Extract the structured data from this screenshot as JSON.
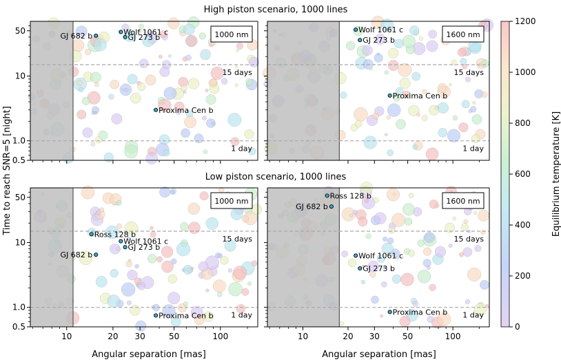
{
  "figure": {
    "ylabel": "Time to reach SNR=5 [night]",
    "xlabel": "Angular separation [mas]",
    "colorbar": {
      "label": "Equilibrium temperature [K]",
      "range": [
        0,
        1200
      ],
      "ticks": [
        0,
        200,
        400,
        600,
        800,
        1000,
        1200
      ],
      "colors": [
        "#440154",
        "#30678d",
        "#35b778",
        "#fde724",
        "#ff7f0e",
        "#d62728"
      ]
    },
    "row_titles": [
      "High piston scenario, 1000 lines",
      "Low piston scenario, 1000 lines"
    ]
  },
  "chart_data": [
    {
      "type": "scatter",
      "title": "High piston scenario, 1000 lines",
      "wavelength_label": "1000 nm",
      "xlabel": "",
      "ylabel": "Time to reach SNR=5 [night]",
      "x_scale": "log",
      "y_scale": "log",
      "xlim": [
        5.8,
        175
      ],
      "ylim": [
        0.5,
        70
      ],
      "x_ticks": [
        10,
        20,
        30,
        50,
        100
      ],
      "y_ticks": [
        0.5,
        1.0,
        10,
        50
      ],
      "excluded_region_max_mas": 11,
      "reference_lines": [
        {
          "y": 15,
          "label": "15 days"
        },
        {
          "y": 1.0,
          "label": "1 day"
        }
      ],
      "named_planets": [
        {
          "name": "Wolf 1061 c",
          "x": 22.5,
          "y": 48
        },
        {
          "name": "GJ 682 b",
          "x": 15.5,
          "y": 42
        },
        {
          "name": "GJ 273 b",
          "x": 24,
          "y": 40
        },
        {
          "name": "Proxima Cen b",
          "x": 38,
          "y": 3.0
        }
      ]
    },
    {
      "type": "scatter",
      "title": "High piston scenario, 1000 lines",
      "wavelength_label": "1600 nm",
      "xlabel": "",
      "ylabel": "",
      "x_scale": "log",
      "y_scale": "log",
      "xlim": [
        5.8,
        175
      ],
      "ylim": [
        0.5,
        70
      ],
      "x_ticks": [
        10,
        20,
        30,
        50,
        100
      ],
      "y_ticks": [
        0.5,
        1.0,
        10,
        50
      ],
      "excluded_region_max_mas": 17.5,
      "reference_lines": [
        {
          "y": 15,
          "label": "15 days"
        },
        {
          "y": 1.0,
          "label": "1 day"
        }
      ],
      "named_planets": [
        {
          "name": "Wolf 1061 c",
          "x": 22.5,
          "y": 52
        },
        {
          "name": "GJ 273 b",
          "x": 24,
          "y": 36
        },
        {
          "name": "Proxima Cen b",
          "x": 38,
          "y": 5.0
        }
      ]
    },
    {
      "type": "scatter",
      "title": "Low piston scenario, 1000 lines",
      "wavelength_label": "1000 nm",
      "xlabel": "Angular separation [mas]",
      "ylabel": "Time to reach SNR=5 [night]",
      "x_scale": "log",
      "y_scale": "log",
      "xlim": [
        5.8,
        175
      ],
      "ylim": [
        0.5,
        70
      ],
      "x_ticks": [
        10,
        20,
        30,
        50,
        100
      ],
      "y_ticks": [
        0.5,
        1.0,
        10,
        50
      ],
      "excluded_region_max_mas": 11,
      "reference_lines": [
        {
          "y": 15,
          "label": "15 days"
        },
        {
          "y": 1.0,
          "label": "1 day"
        }
      ],
      "named_planets": [
        {
          "name": "Ross 128 b",
          "x": 14.5,
          "y": 13.5
        },
        {
          "name": "Wolf 1061 c",
          "x": 22.5,
          "y": 10.5
        },
        {
          "name": "GJ 273 b",
          "x": 24,
          "y": 8.5
        },
        {
          "name": "GJ 682 b",
          "x": 15.5,
          "y": 6.5
        },
        {
          "name": "Proxima Cen b",
          "x": 38,
          "y": 0.75
        }
      ]
    },
    {
      "type": "scatter",
      "title": "Low piston scenario, 1000 lines",
      "wavelength_label": "1600 nm",
      "xlabel": "Angular separation [mas]",
      "ylabel": "",
      "x_scale": "log",
      "y_scale": "log",
      "xlim": [
        5.8,
        175
      ],
      "ylim": [
        0.5,
        70
      ],
      "x_ticks": [
        10,
        20,
        30,
        50,
        100
      ],
      "y_ticks": [
        0.5,
        1.0,
        10,
        50
      ],
      "excluded_region_max_mas": 17.5,
      "reference_lines": [
        {
          "y": 15,
          "label": "15 days"
        },
        {
          "y": 1.0,
          "label": "1 day"
        }
      ],
      "named_planets": [
        {
          "name": "Ross 128 b",
          "x": 14.5,
          "y": 53
        },
        {
          "name": "GJ 682 b",
          "x": 15.5,
          "y": 36
        },
        {
          "name": "Wolf 1061 c",
          "x": 22.5,
          "y": 6.3
        },
        {
          "name": "GJ 273 b",
          "x": 24,
          "y": 4.0
        },
        {
          "name": "Proxima Cen b",
          "x": 38,
          "y": 0.85
        }
      ]
    }
  ]
}
